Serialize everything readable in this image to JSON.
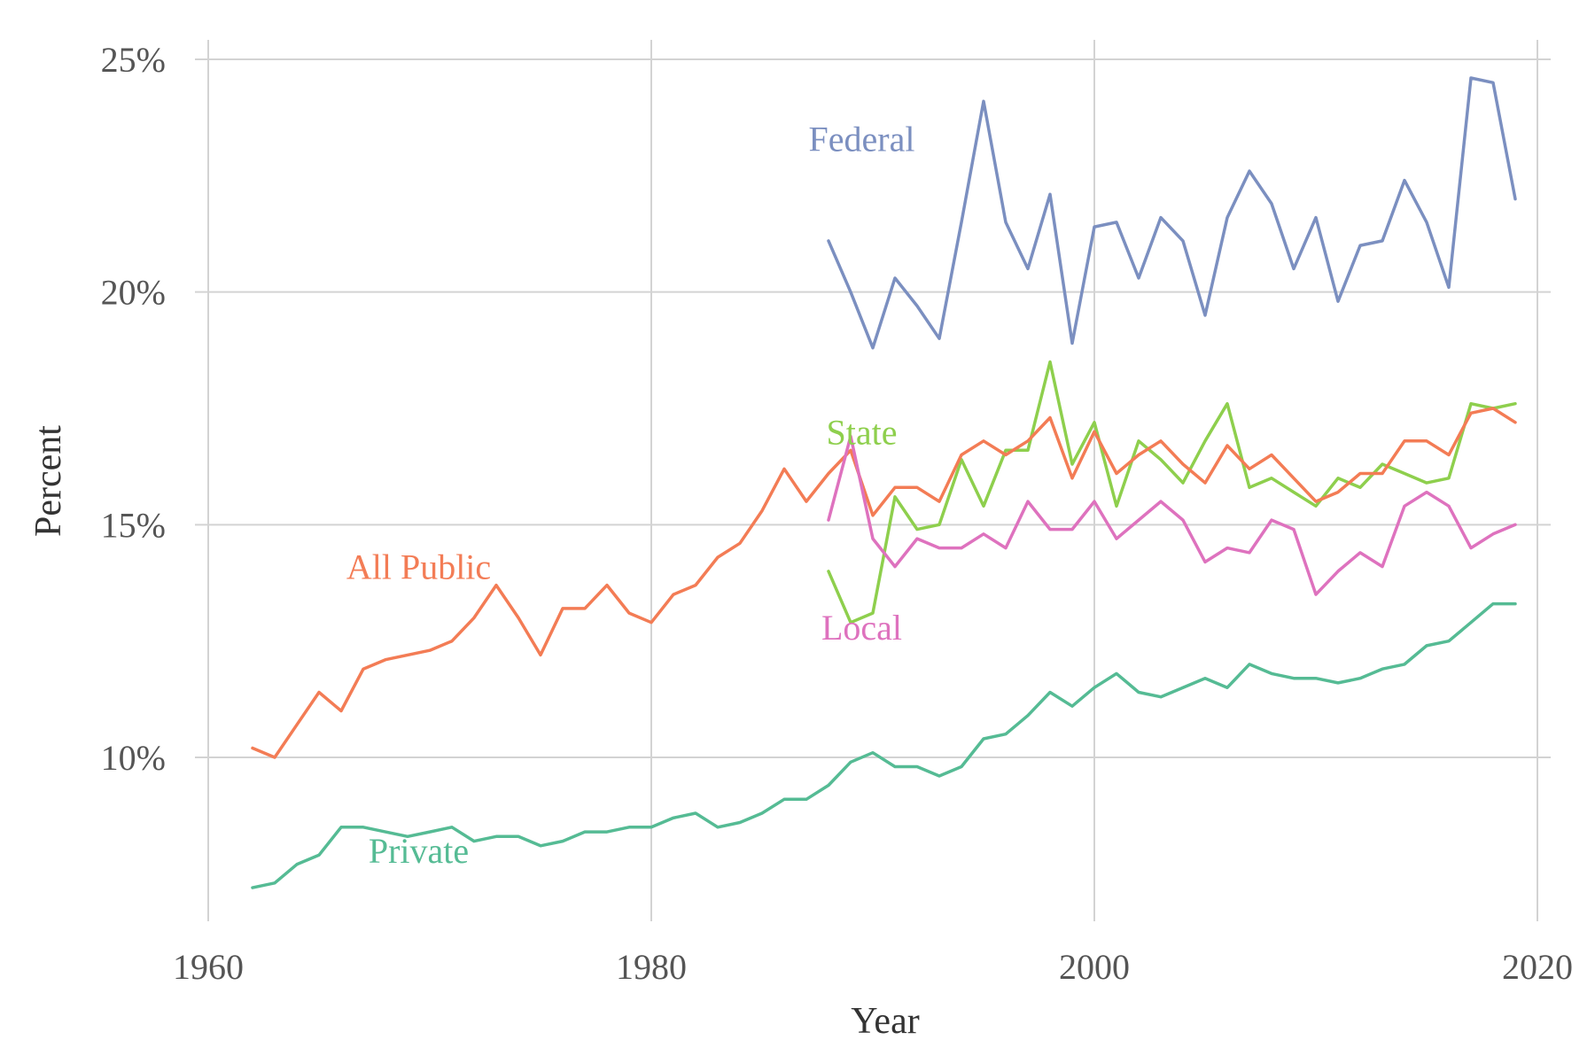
{
  "chart_data": {
    "type": "line",
    "xlabel": "Year",
    "ylabel": "Percent",
    "xlim": [
      1960,
      2020
    ],
    "ylim": [
      0.065,
      0.255
    ],
    "x_ticks": [
      1960,
      1980,
      2000,
      2020
    ],
    "x_tick_labels": [
      "1960",
      "1980",
      "2000",
      "2020"
    ],
    "y_ticks": [
      0.1,
      0.15,
      0.2,
      0.25
    ],
    "y_tick_labels": [
      "10%",
      "15%",
      "20%",
      "25%"
    ],
    "grid": true,
    "legend": "none (direct labels)",
    "series": [
      {
        "name": "Federal",
        "color": "#7b8fc0",
        "label_at": [
          1989.5,
          0.233
        ],
        "x": [
          1988,
          1989,
          1990,
          1991,
          1992,
          1993,
          1994,
          1995,
          1996,
          1997,
          1998,
          1999,
          2000,
          2001,
          2002,
          2003,
          2004,
          2005,
          2006,
          2007,
          2008,
          2009,
          2010,
          2011,
          2012,
          2013,
          2014,
          2015,
          2016,
          2017,
          2018,
          2019
        ],
        "y": [
          0.211,
          0.2,
          0.188,
          0.203,
          0.197,
          0.19,
          0.215,
          0.241,
          0.215,
          0.205,
          0.221,
          0.189,
          0.214,
          0.215,
          0.203,
          0.216,
          0.211,
          0.195,
          0.216,
          0.226,
          0.219,
          0.205,
          0.216,
          0.198,
          0.21,
          0.211,
          0.224,
          0.215,
          0.201,
          0.246,
          0.245,
          0.22
        ]
      },
      {
        "name": "State",
        "color": "#8ecf4d",
        "label_at": [
          1989.5,
          0.17
        ],
        "x": [
          1988,
          1989,
          1990,
          1991,
          1992,
          1993,
          1994,
          1995,
          1996,
          1997,
          1998,
          1999,
          2000,
          2001,
          2002,
          2003,
          2004,
          2005,
          2006,
          2007,
          2008,
          2009,
          2010,
          2011,
          2012,
          2013,
          2014,
          2015,
          2016,
          2017,
          2018,
          2019
        ],
        "y": [
          0.14,
          0.129,
          0.131,
          0.156,
          0.149,
          0.15,
          0.164,
          0.154,
          0.166,
          0.166,
          0.185,
          0.163,
          0.172,
          0.154,
          0.168,
          0.164,
          0.159,
          0.168,
          0.176,
          0.158,
          0.16,
          0.157,
          0.154,
          0.16,
          0.158,
          0.163,
          0.161,
          0.159,
          0.16,
          0.176,
          0.175,
          0.176
        ]
      },
      {
        "name": "All Public",
        "color": "#f37c55",
        "label_at": [
          1969.5,
          0.141
        ],
        "x": [
          1962,
          1963,
          1964,
          1965,
          1966,
          1967,
          1968,
          1969,
          1970,
          1971,
          1972,
          1973,
          1974,
          1975,
          1976,
          1977,
          1978,
          1979,
          1980,
          1981,
          1982,
          1983,
          1984,
          1985,
          1986,
          1987,
          1988,
          1989,
          1990,
          1991,
          1992,
          1993,
          1994,
          1995,
          1996,
          1997,
          1998,
          1999,
          2000,
          2001,
          2002,
          2003,
          2004,
          2005,
          2006,
          2007,
          2008,
          2009,
          2010,
          2011,
          2012,
          2013,
          2014,
          2015,
          2016,
          2017,
          2018,
          2019
        ],
        "y": [
          0.102,
          0.1,
          0.107,
          0.114,
          0.11,
          0.119,
          0.121,
          0.122,
          0.123,
          0.125,
          0.13,
          0.137,
          0.13,
          0.122,
          0.132,
          0.132,
          0.137,
          0.131,
          0.129,
          0.135,
          0.137,
          0.143,
          0.146,
          0.153,
          0.162,
          0.155,
          0.161,
          0.166,
          0.152,
          0.158,
          0.158,
          0.155,
          0.165,
          0.168,
          0.165,
          0.168,
          0.173,
          0.16,
          0.17,
          0.161,
          0.165,
          0.168,
          0.163,
          0.159,
          0.167,
          0.162,
          0.165,
          0.16,
          0.155,
          0.157,
          0.161,
          0.161,
          0.168,
          0.168,
          0.165,
          0.174,
          0.175,
          0.172
        ]
      },
      {
        "name": "Local",
        "color": "#de72be",
        "label_at": [
          1989.5,
          0.128
        ],
        "x": [
          1988,
          1989,
          1990,
          1991,
          1992,
          1993,
          1994,
          1995,
          1996,
          1997,
          1998,
          1999,
          2000,
          2001,
          2002,
          2003,
          2004,
          2005,
          2006,
          2007,
          2008,
          2009,
          2010,
          2011,
          2012,
          2013,
          2014,
          2015,
          2016,
          2017,
          2018,
          2019
        ],
        "y": [
          0.151,
          0.169,
          0.147,
          0.141,
          0.147,
          0.145,
          0.145,
          0.148,
          0.145,
          0.155,
          0.149,
          0.149,
          0.155,
          0.147,
          0.151,
          0.155,
          0.151,
          0.142,
          0.145,
          0.144,
          0.151,
          0.149,
          0.135,
          0.14,
          0.144,
          0.141,
          0.154,
          0.157,
          0.154,
          0.145,
          0.148,
          0.15
        ]
      },
      {
        "name": "Private",
        "color": "#55bb94",
        "label_at": [
          1969.5,
          0.08
        ],
        "x": [
          1962,
          1963,
          1964,
          1965,
          1966,
          1967,
          1968,
          1969,
          1970,
          1971,
          1972,
          1973,
          1974,
          1975,
          1976,
          1977,
          1978,
          1979,
          1980,
          1981,
          1982,
          1983,
          1984,
          1985,
          1986,
          1987,
          1988,
          1989,
          1990,
          1991,
          1992,
          1993,
          1994,
          1995,
          1996,
          1997,
          1998,
          1999,
          2000,
          2001,
          2002,
          2003,
          2004,
          2005,
          2006,
          2007,
          2008,
          2009,
          2010,
          2011,
          2012,
          2013,
          2014,
          2015,
          2016,
          2017,
          2018,
          2019
        ],
        "y": [
          0.072,
          0.073,
          0.077,
          0.079,
          0.085,
          0.085,
          0.084,
          0.083,
          0.084,
          0.085,
          0.082,
          0.083,
          0.083,
          0.081,
          0.082,
          0.084,
          0.084,
          0.085,
          0.085,
          0.087,
          0.088,
          0.085,
          0.086,
          0.088,
          0.091,
          0.091,
          0.094,
          0.099,
          0.101,
          0.098,
          0.098,
          0.096,
          0.098,
          0.104,
          0.105,
          0.109,
          0.114,
          0.111,
          0.115,
          0.118,
          0.114,
          0.113,
          0.115,
          0.117,
          0.115,
          0.12,
          0.118,
          0.117,
          0.117,
          0.116,
          0.117,
          0.119,
          0.12,
          0.124,
          0.125,
          0.129,
          0.133,
          0.133
        ]
      }
    ]
  }
}
